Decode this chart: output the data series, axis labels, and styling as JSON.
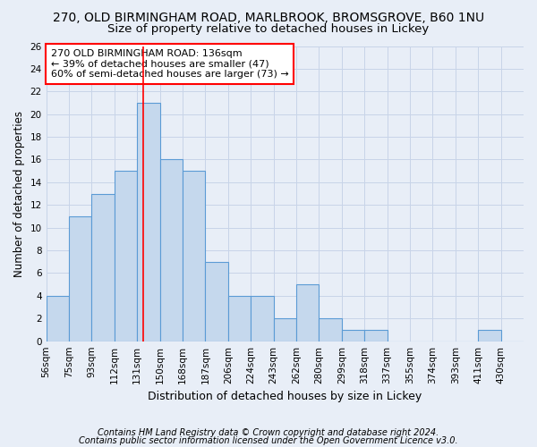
{
  "title": "270, OLD BIRMINGHAM ROAD, MARLBROOK, BROMSGROVE, B60 1NU",
  "subtitle": "Size of property relative to detached houses in Lickey",
  "xlabel": "Distribution of detached houses by size in Lickey",
  "ylabel": "Number of detached properties",
  "bin_labels": [
    "56sqm",
    "75sqm",
    "93sqm",
    "112sqm",
    "131sqm",
    "150sqm",
    "168sqm",
    "187sqm",
    "206sqm",
    "224sqm",
    "243sqm",
    "262sqm",
    "280sqm",
    "299sqm",
    "318sqm",
    "337sqm",
    "355sqm",
    "374sqm",
    "393sqm",
    "411sqm",
    "430sqm"
  ],
  "counts": [
    4,
    11,
    13,
    15,
    21,
    16,
    15,
    7,
    4,
    4,
    2,
    5,
    2,
    1,
    1,
    0,
    0,
    0,
    0,
    1,
    0
  ],
  "n_bins": 21,
  "redline_bin": 4.27,
  "bar_color": "#c5d8ed",
  "bar_edge_color": "#5b9bd5",
  "annotation_text": "270 OLD BIRMINGHAM ROAD: 136sqm\n← 39% of detached houses are smaller (47)\n60% of semi-detached houses are larger (73) →",
  "annotation_box_color": "white",
  "annotation_box_edge_color": "red",
  "ylim": [
    0,
    26
  ],
  "yticks": [
    0,
    2,
    4,
    6,
    8,
    10,
    12,
    14,
    16,
    18,
    20,
    22,
    24,
    26
  ],
  "grid_color": "#c8d4e8",
  "background_color": "#e8eef7",
  "footer_line1": "Contains HM Land Registry data © Crown copyright and database right 2024.",
  "footer_line2": "Contains public sector information licensed under the Open Government Licence v3.0.",
  "title_fontsize": 10,
  "subtitle_fontsize": 9.5,
  "xlabel_fontsize": 9,
  "ylabel_fontsize": 8.5,
  "tick_fontsize": 7.5,
  "annotation_fontsize": 8,
  "footer_fontsize": 7
}
